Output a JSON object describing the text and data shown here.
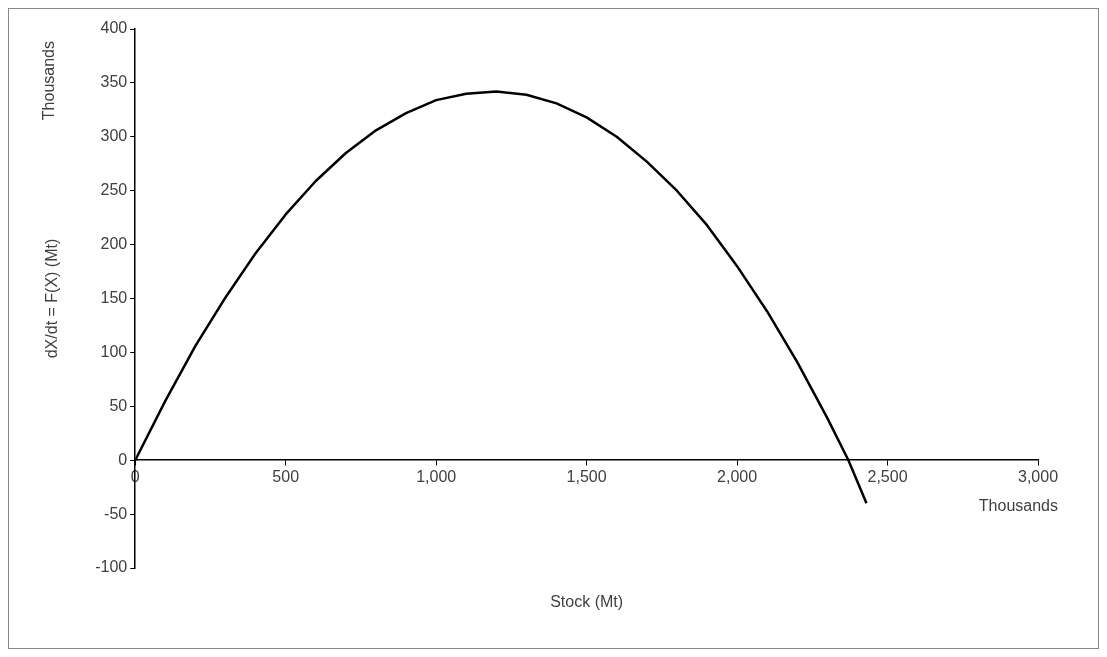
{
  "chart_data": {
    "type": "line",
    "xlabel": "Stock (Mt)",
    "ylabel": "dX/dt = F(X) (Mt)",
    "annotations": [
      "Thousands",
      "Thousands"
    ],
    "series": [
      {
        "color": "#000000",
        "x": [
          0,
          100,
          200,
          300,
          400,
          500,
          600,
          700,
          800,
          900,
          1000,
          1100,
          1200,
          1300,
          1400,
          1500,
          1600,
          1700,
          1800,
          1900,
          2000,
          2100,
          2200,
          2300,
          2370,
          2430
        ],
        "values": [
          0,
          55,
          106,
          151,
          192,
          228,
          259,
          285,
          306,
          322,
          334,
          340,
          342,
          339,
          331,
          318,
          300,
          277,
          250,
          218,
          180,
          138,
          91,
          39,
          0,
          -40
        ]
      }
    ],
    "xlim": [
      0,
      3000
    ],
    "xticks": [
      {
        "value": 0,
        "label": "0"
      },
      {
        "value": 500,
        "label": "500"
      },
      {
        "value": 1000,
        "label": "1,000"
      },
      {
        "value": 1500,
        "label": "1,500"
      },
      {
        "value": 2000,
        "label": "2,000"
      },
      {
        "value": 2500,
        "label": "2,500"
      },
      {
        "value": 3000,
        "label": "3,000"
      }
    ],
    "ylim": [
      -100,
      400
    ],
    "yticks": [
      -100,
      -50,
      0,
      50,
      100,
      150,
      200,
      250,
      300,
      350,
      400
    ],
    "grid": false,
    "legend": false,
    "marker": "none",
    "line_style": "solid"
  }
}
